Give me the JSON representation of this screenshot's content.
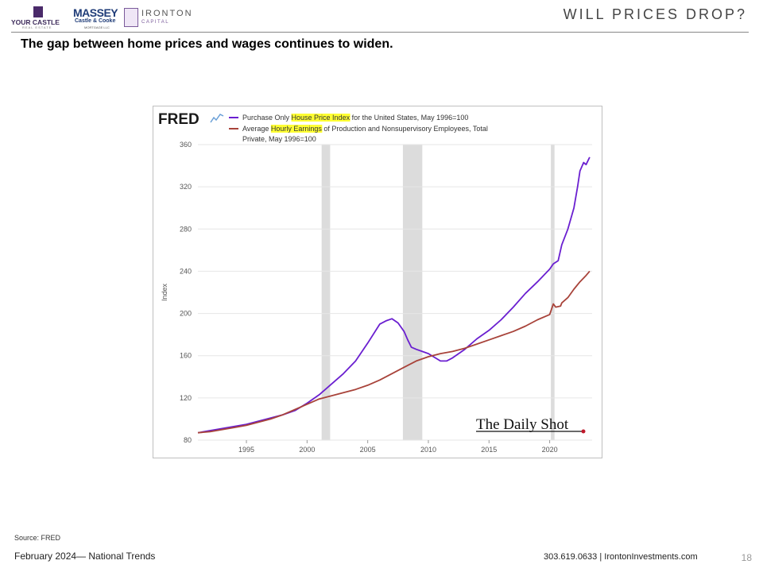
{
  "logos": {
    "your_castle": "YOUR CASTLE",
    "your_castle_sub": "REAL ESTATE",
    "massey": "MASSEY",
    "massey_sub": "Castle & Cooke",
    "massey_sub2": "MORTGAGE LLC",
    "ironton": "IRONTON",
    "ironton_sub": "CAPITAL"
  },
  "header": {
    "title": "WILL PRICES DROP?"
  },
  "subtitle": "The gap between home prices and wages continues to widen.",
  "colors": {
    "hpi": "#6a1fd0",
    "earnings": "#a8433a",
    "recession": "#dcdcdc",
    "highlight": "#ffff33"
  },
  "chart_data": {
    "type": "line",
    "brand": "FRED",
    "watermark": "The Daily Shot",
    "ylabel": "Index",
    "xlim": [
      1991.0,
      2023.5
    ],
    "ylim": [
      80,
      360
    ],
    "yticks": [
      80,
      120,
      160,
      200,
      240,
      280,
      320,
      360
    ],
    "xticks": [
      1995,
      2000,
      2005,
      2010,
      2015,
      2020
    ],
    "grid": true,
    "recessions": [
      [
        2001.2,
        2001.9
      ],
      [
        2007.9,
        2009.5
      ],
      [
        2020.1,
        2020.4
      ]
    ],
    "legend": [
      {
        "pre": "Purchase Only ",
        "hl": "House Price Index",
        "post": " for the United States, May 1996=100"
      },
      {
        "pre": "Average ",
        "hl": "Hourly Earnings",
        "post": " of Production and Nonsupervisory Employees, Total"
      },
      {
        "pre": "Private, May 1996=100",
        "hl": "",
        "post": ""
      }
    ],
    "series": [
      {
        "name": "Purchase Only House Price Index for the United States, May 1996=100",
        "x": [
          1991.0,
          1992,
          1993,
          1994,
          1995,
          1996,
          1997,
          1998,
          1999,
          2000,
          2001,
          2002,
          2003,
          2004,
          2005,
          2006,
          2006.5,
          2007,
          2007.5,
          2008,
          2008.3,
          2008.6,
          2009,
          2009.5,
          2010,
          2011,
          2011.5,
          2012,
          2013,
          2014,
          2015,
          2016,
          2017,
          2018,
          2019,
          2020,
          2020.3,
          2020.7,
          2021,
          2021.5,
          2022,
          2022.3,
          2022.5,
          2022.8,
          2023,
          2023.3
        ],
        "values": [
          87,
          89,
          91,
          93,
          95,
          98,
          101,
          104,
          108,
          115,
          123,
          133,
          143,
          155,
          172,
          190,
          193,
          195,
          191,
          183,
          175,
          168,
          166,
          164,
          162,
          155,
          155,
          158,
          166,
          176,
          184,
          194,
          206,
          219,
          230,
          242,
          247,
          250,
          265,
          280,
          300,
          320,
          335,
          343,
          341,
          348
        ]
      },
      {
        "name": "Average Hourly Earnings of Production and Nonsupervisory Employees, Total Private, May 1996=100",
        "x": [
          1991.0,
          1992,
          1993,
          1994,
          1995,
          1996,
          1997,
          1998,
          1999,
          2000,
          2001,
          2002,
          2003,
          2004,
          2005,
          2006,
          2007,
          2008,
          2009,
          2010,
          2011,
          2012,
          2013,
          2014,
          2015,
          2016,
          2017,
          2018,
          2019,
          2020,
          2020.3,
          2020.5,
          2020.9,
          2021,
          2021.5,
          2022,
          2022.5,
          2023,
          2023.3
        ],
        "values": [
          87,
          88,
          90,
          92,
          94,
          97,
          100,
          104,
          109,
          114,
          119,
          122,
          125,
          128,
          132,
          137,
          143,
          149,
          155,
          159,
          162,
          164,
          167,
          171,
          175,
          179,
          183,
          188,
          194,
          199,
          209,
          206,
          207,
          210,
          215,
          223,
          230,
          236,
          240
        ]
      }
    ]
  },
  "source": "Source: FRED",
  "footer": {
    "left": "February 2024— National Trends",
    "contact": "303.619.0633 | IrontonInvestments.com",
    "page": "18"
  }
}
